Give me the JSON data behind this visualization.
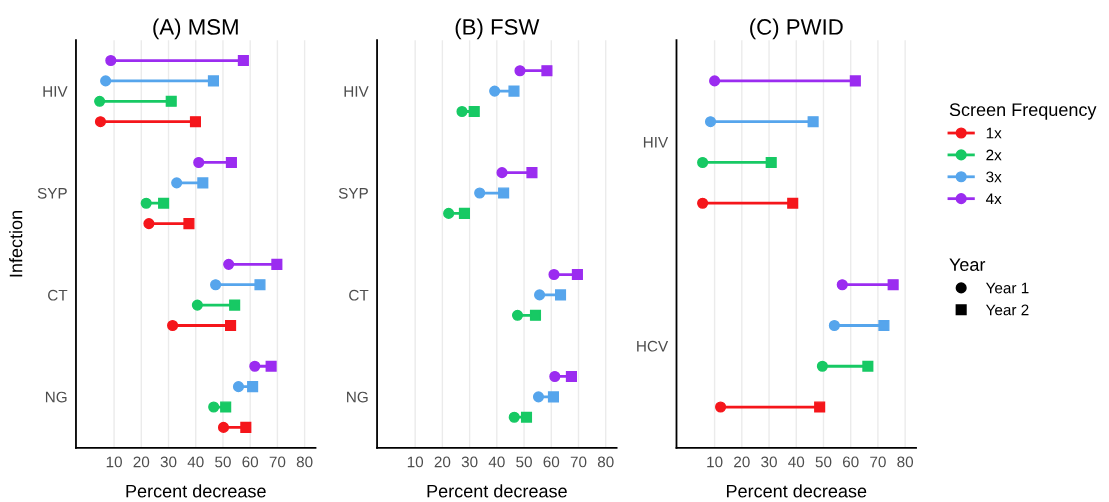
{
  "chart_data": [
    {
      "type": "scatter",
      "title": "(A) MSM",
      "xlabel": "Percent decrease",
      "ylabel": "Infection",
      "orientation": "horizontal",
      "categories": [
        "HIV",
        "SYP",
        "CT",
        "NG"
      ],
      "xlim": [
        -4,
        84
      ],
      "xticks": [
        10,
        20,
        30,
        40,
        50,
        60,
        70,
        80
      ],
      "grid": "x",
      "legend": false,
      "series": [
        {
          "color": "#f5161b",
          "marker": "circle",
          "values": [
            5,
            22.8,
            31.5,
            50.2
          ]
        },
        {
          "color": "#f5161b",
          "marker": "square",
          "values": [
            39.9,
            37.5,
            52.8,
            58.4
          ]
        },
        {
          "color": "#17c964",
          "marker": "circle",
          "values": [
            4.7,
            21.8,
            40.6,
            46.6
          ]
        },
        {
          "color": "#17c964",
          "marker": "square",
          "values": [
            31,
            28.2,
            54.3,
            51
          ]
        },
        {
          "color": "#56a5ec",
          "marker": "circle",
          "values": [
            6.9,
            33,
            47.3,
            55.7
          ]
        },
        {
          "color": "#56a5ec",
          "marker": "square",
          "values": [
            46.5,
            42.6,
            63.6,
            60.9
          ]
        },
        {
          "color": "#9b2cf0",
          "marker": "circle",
          "values": [
            8.8,
            41.1,
            52.1,
            61.7
          ]
        },
        {
          "color": "#9b2cf0",
          "marker": "square",
          "values": [
            57.5,
            53.1,
            69.8,
            67.7
          ]
        }
      ]
    },
    {
      "type": "scatter",
      "title": "(B) FSW",
      "xlabel": "Percent decrease",
      "orientation": "horizontal",
      "categories": [
        "HIV",
        "SYP",
        "CT",
        "NG"
      ],
      "xlim": [
        -4,
        84
      ],
      "xticks": [
        10,
        20,
        30,
        40,
        50,
        60,
        70,
        80
      ],
      "grid": "x",
      "legend": false,
      "series": [
        {
          "color": "#17c964",
          "marker": "circle",
          "values": [
            27.2,
            22.3,
            47.6,
            46.4
          ]
        },
        {
          "color": "#17c964",
          "marker": "square",
          "values": [
            31.7,
            28.1,
            54.2,
            50.9
          ]
        },
        {
          "color": "#56a5ec",
          "marker": "circle",
          "values": [
            39.2,
            33.7,
            55.7,
            55.3
          ]
        },
        {
          "color": "#56a5ec",
          "marker": "square",
          "values": [
            46.3,
            42.5,
            63.4,
            60.8
          ]
        },
        {
          "color": "#9b2cf0",
          "marker": "circle",
          "values": [
            48.5,
            41.9,
            61,
            61.3
          ]
        },
        {
          "color": "#9b2cf0",
          "marker": "square",
          "values": [
            58.4,
            52.9,
            69.6,
            67.4
          ]
        }
      ]
    },
    {
      "type": "scatter",
      "title": "(C) PWID",
      "xlabel": "Percent decrease",
      "orientation": "horizontal",
      "categories": [
        "HIV",
        "HCV"
      ],
      "xlim": [
        -4,
        84
      ],
      "xticks": [
        10,
        20,
        30,
        40,
        50,
        60,
        70,
        80
      ],
      "grid": "x",
      "legend": "right",
      "legend_title": [
        "Screen Frequency",
        "Year"
      ],
      "series": [
        {
          "name": "1x",
          "color": "#f5161b",
          "marker": "circle",
          "values": [
            5.6,
            12.2
          ]
        },
        {
          "color": "#f5161b",
          "marker": "square",
          "values": [
            38.7,
            48.6
          ]
        },
        {
          "name": "2x",
          "color": "#17c964",
          "marker": "circle",
          "values": [
            5.6,
            49.6
          ]
        },
        {
          "color": "#17c964",
          "marker": "square",
          "values": [
            30.8,
            66.3
          ]
        },
        {
          "name": "3x",
          "color": "#56a5ec",
          "marker": "circle",
          "values": [
            8.5,
            54
          ]
        },
        {
          "color": "#56a5ec",
          "marker": "square",
          "values": [
            46.2,
            72.2
          ]
        },
        {
          "name": "4x",
          "color": "#9b2cf0",
          "marker": "circle",
          "values": [
            10,
            56.9
          ]
        },
        {
          "color": "#9b2cf0",
          "marker": "square",
          "values": [
            61.7,
            75.6
          ]
        },
        {
          "name": "Year 1",
          "color": "#000000",
          "marker": "circle",
          "values": [
            null,
            null
          ]
        },
        {
          "name": "Year 2",
          "color": "#000000",
          "marker": "square",
          "values": [
            null,
            null
          ]
        }
      ]
    }
  ]
}
